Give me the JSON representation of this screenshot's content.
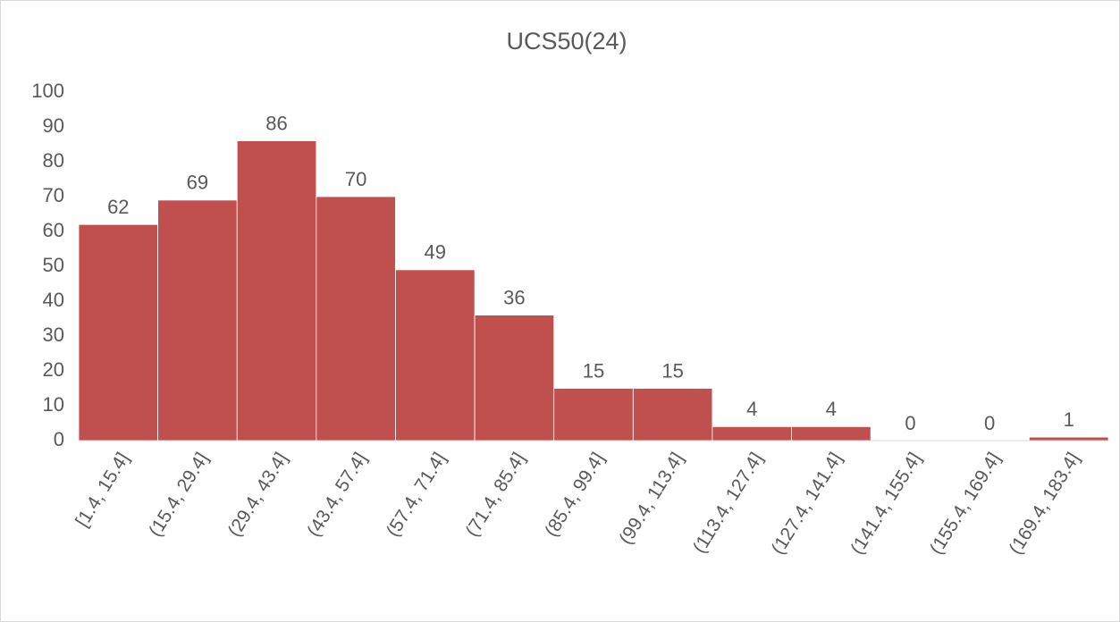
{
  "chart_data": {
    "type": "bar",
    "title": "UCS50(24)",
    "categories": [
      "[1.4, 15.4]",
      "(15.4, 29.4]",
      "(29.4, 43.4]",
      "(43.4, 57.4]",
      "(57.4, 71.4]",
      "(71.4, 85.4]",
      "(85.4, 99.4]",
      "(99.4, 113.4]",
      "(113.4, 127.4]",
      "(127.4, 141.4]",
      "(141.4, 155.4]",
      "(155.4, 169.4]",
      "(169.4, 183.4]"
    ],
    "values": [
      62,
      69,
      86,
      70,
      49,
      36,
      15,
      15,
      4,
      4,
      0,
      0,
      1
    ],
    "color": "#c0504d",
    "ylim": [
      0,
      100
    ],
    "yticks": [
      0,
      10,
      20,
      30,
      40,
      50,
      60,
      70,
      80,
      90,
      100
    ],
    "grid": false
  }
}
